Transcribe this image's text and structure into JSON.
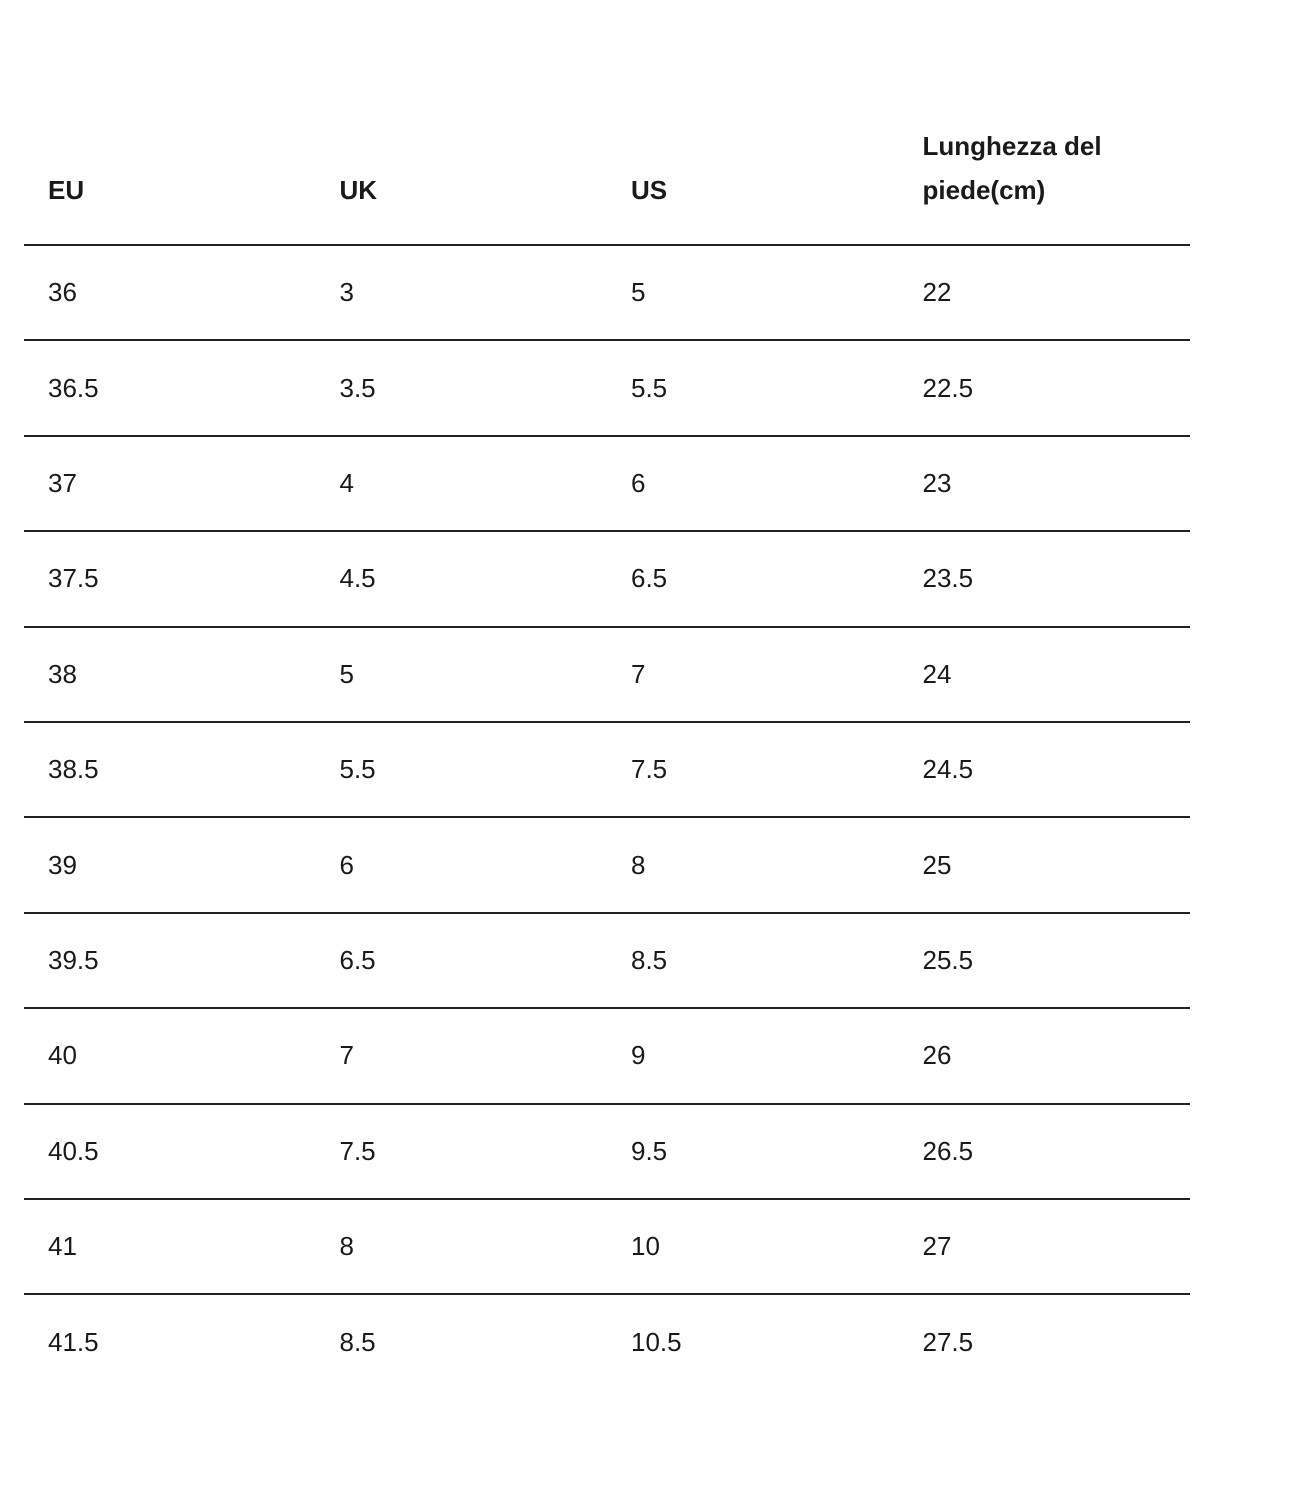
{
  "table": {
    "header": [
      "EU",
      "UK",
      "US",
      "Lunghezza del piede(cm)"
    ],
    "rows": [
      [
        "36",
        "3",
        "5",
        "22"
      ],
      [
        "36.5",
        "3.5",
        "5.5",
        "22.5"
      ],
      [
        "37",
        "4",
        "6",
        "23"
      ],
      [
        "37.5",
        "4.5",
        "6.5",
        "23.5"
      ],
      [
        "38",
        "5",
        "7",
        "24"
      ],
      [
        "38.5",
        "5.5",
        "7.5",
        "24.5"
      ],
      [
        "39",
        "6",
        "8",
        "25"
      ],
      [
        "39.5",
        "6.5",
        "8.5",
        "25.5"
      ],
      [
        "40",
        "7",
        "9",
        "26"
      ],
      [
        "40.5",
        "7.5",
        "9.5",
        "26.5"
      ],
      [
        "41",
        "8",
        "10",
        "27"
      ],
      [
        "41.5",
        "8.5",
        "10.5",
        "27.5"
      ]
    ]
  }
}
